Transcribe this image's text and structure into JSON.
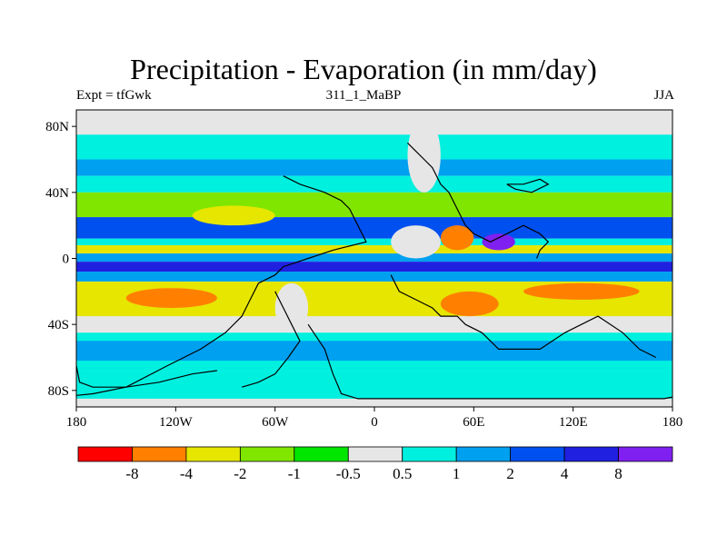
{
  "title": "Precipitation - Evaporation (in mm/day)",
  "left_string": "Expt = tfGwk",
  "center_string": "311_1_MaBP",
  "right_string": "JJA",
  "x_ticks": [
    {
      "value": -180,
      "label": "180"
    },
    {
      "value": -120,
      "label": "120W"
    },
    {
      "value": -60,
      "label": "60W"
    },
    {
      "value": 0,
      "label": "0"
    },
    {
      "value": 60,
      "label": "60E"
    },
    {
      "value": 120,
      "label": "120E"
    },
    {
      "value": 180,
      "label": "180"
    }
  ],
  "y_ticks": [
    {
      "value": 80,
      "label": "80N"
    },
    {
      "value": 40,
      "label": "40N"
    },
    {
      "value": 0,
      "label": "0"
    },
    {
      "value": -40,
      "label": "40S"
    },
    {
      "value": -80,
      "label": "80S"
    }
  ],
  "colorbar": {
    "colors": [
      "#ff0000",
      "#ff8000",
      "#e6e600",
      "#80e600",
      "#00e600",
      "#e6e6e6",
      "#00f0e0",
      "#00a0f0",
      "#0050f0",
      "#2020e0",
      "#8020f0"
    ],
    "labels": [
      "-8",
      "-4",
      "-2",
      "-1",
      "-0.5",
      "0.5",
      "1",
      "2",
      "4",
      "8"
    ]
  },
  "colors": {
    "background": "#e6e6e6",
    "coastline": "#000000"
  },
  "bands": [
    {
      "lat_top": 75,
      "lat_bottom": 60,
      "color": "#00f0e0"
    },
    {
      "lat_top": 60,
      "lat_bottom": 50,
      "color": "#00a0f0"
    },
    {
      "lat_top": 50,
      "lat_bottom": 40,
      "color": "#00f0e0"
    },
    {
      "lat_top": 40,
      "lat_bottom": 25,
      "color": "#80e600"
    },
    {
      "lat_top": 25,
      "lat_bottom": 12,
      "color": "#0050f0"
    },
    {
      "lat_top": 12,
      "lat_bottom": 8,
      "color": "#00f0e0"
    },
    {
      "lat_top": 8,
      "lat_bottom": 3,
      "color": "#e6e600"
    },
    {
      "lat_top": 3,
      "lat_bottom": -2,
      "color": "#00a0f0"
    },
    {
      "lat_top": -2,
      "lat_bottom": -8,
      "color": "#2020e0"
    },
    {
      "lat_top": -8,
      "lat_bottom": -14,
      "color": "#00a0f0"
    },
    {
      "lat_top": -14,
      "lat_bottom": -35,
      "color": "#e6e600"
    },
    {
      "lat_top": -45,
      "lat_bottom": -68,
      "color": "#00f0e0"
    },
    {
      "lat_top": -50,
      "lat_bottom": -62,
      "color": "#00a0f0"
    },
    {
      "lat_top": -68,
      "lat_bottom": -85,
      "color": "#00f0e0"
    }
  ],
  "blobs": [
    {
      "lon_min": -150,
      "lon_max": -95,
      "lat_min": -30,
      "lat_max": -18,
      "color": "#ff8000"
    },
    {
      "lon_min": -110,
      "lon_max": -60,
      "lat_min": 20,
      "lat_max": 32,
      "color": "#e6e600"
    },
    {
      "lon_min": 40,
      "lon_max": 75,
      "lat_min": -35,
      "lat_max": -20,
      "color": "#ff8000"
    },
    {
      "lon_min": 65,
      "lon_max": 85,
      "lat_min": 5,
      "lat_max": 15,
      "color": "#8020f0"
    },
    {
      "lon_min": 90,
      "lon_max": 160,
      "lat_min": -25,
      "lat_max": -15,
      "color": "#ff8000"
    },
    {
      "lon_min": 10,
      "lon_max": 40,
      "lat_min": 0,
      "lat_max": 20,
      "color": "#e6e6e6"
    },
    {
      "lon_min": -60,
      "lon_max": -40,
      "lat_min": -45,
      "lat_max": -15,
      "color": "#e6e6e6"
    },
    {
      "lon_min": 20,
      "lon_max": 40,
      "lat_min": 40,
      "lat_max": 85,
      "color": "#e6e6e6"
    },
    {
      "lon_min": 40,
      "lon_max": 60,
      "lat_min": 5,
      "lat_max": 20,
      "color": "#ff8000"
    }
  ],
  "coastlines": [
    [
      [
        -55,
        50
      ],
      [
        -45,
        45
      ],
      [
        -30,
        40
      ],
      [
        -20,
        35
      ],
      [
        -15,
        30
      ],
      [
        -10,
        20
      ],
      [
        -5,
        10
      ],
      [
        -25,
        5
      ],
      [
        -40,
        0
      ],
      [
        -55,
        -5
      ],
      [
        -60,
        -10
      ],
      [
        -70,
        -15
      ],
      [
        -75,
        -25
      ],
      [
        -80,
        -35
      ],
      [
        -90,
        -45
      ],
      [
        -105,
        -55
      ],
      [
        -125,
        -65
      ],
      [
        -150,
        -78
      ],
      [
        -170,
        -82
      ],
      [
        -180,
        -83
      ]
    ],
    [
      [
        -60,
        -20
      ],
      [
        -55,
        -30
      ],
      [
        -50,
        -40
      ],
      [
        -45,
        -50
      ],
      [
        -52,
        -60
      ],
      [
        -60,
        -70
      ],
      [
        -70,
        -75
      ],
      [
        -80,
        -78
      ]
    ],
    [
      [
        20,
        70
      ],
      [
        25,
        65
      ],
      [
        30,
        60
      ],
      [
        35,
        55
      ],
      [
        40,
        45
      ],
      [
        45,
        40
      ],
      [
        50,
        30
      ],
      [
        55,
        20
      ],
      [
        60,
        15
      ],
      [
        70,
        10
      ],
      [
        80,
        15
      ],
      [
        90,
        20
      ],
      [
        100,
        15
      ],
      [
        105,
        10
      ],
      [
        100,
        5
      ],
      [
        98,
        0
      ]
    ],
    [
      [
        10,
        -10
      ],
      [
        15,
        -20
      ],
      [
        25,
        -25
      ],
      [
        35,
        -30
      ],
      [
        40,
        -35
      ],
      [
        50,
        -35
      ],
      [
        55,
        -40
      ],
      [
        65,
        -45
      ],
      [
        75,
        -55
      ],
      [
        100,
        -55
      ],
      [
        115,
        -45
      ],
      [
        125,
        -40
      ],
      [
        135,
        -35
      ],
      [
        150,
        -45
      ],
      [
        160,
        -55
      ],
      [
        170,
        -60
      ]
    ],
    [
      [
        80,
        45
      ],
      [
        90,
        45
      ],
      [
        100,
        48
      ],
      [
        105,
        45
      ],
      [
        95,
        40
      ],
      [
        85,
        42
      ],
      [
        80,
        45
      ]
    ],
    [
      [
        -180,
        -65
      ],
      [
        -178,
        -75
      ],
      [
        -170,
        -78
      ],
      [
        -150,
        -78
      ],
      [
        -130,
        -75
      ],
      [
        -110,
        -70
      ],
      [
        -95,
        -68
      ]
    ],
    [
      [
        -40,
        -40
      ],
      [
        -30,
        -55
      ],
      [
        -25,
        -70
      ],
      [
        -20,
        -82
      ],
      [
        -10,
        -85
      ],
      [
        20,
        -85
      ],
      [
        60,
        -85
      ],
      [
        120,
        -85
      ],
      [
        175,
        -85
      ],
      [
        180,
        -84
      ]
    ]
  ]
}
